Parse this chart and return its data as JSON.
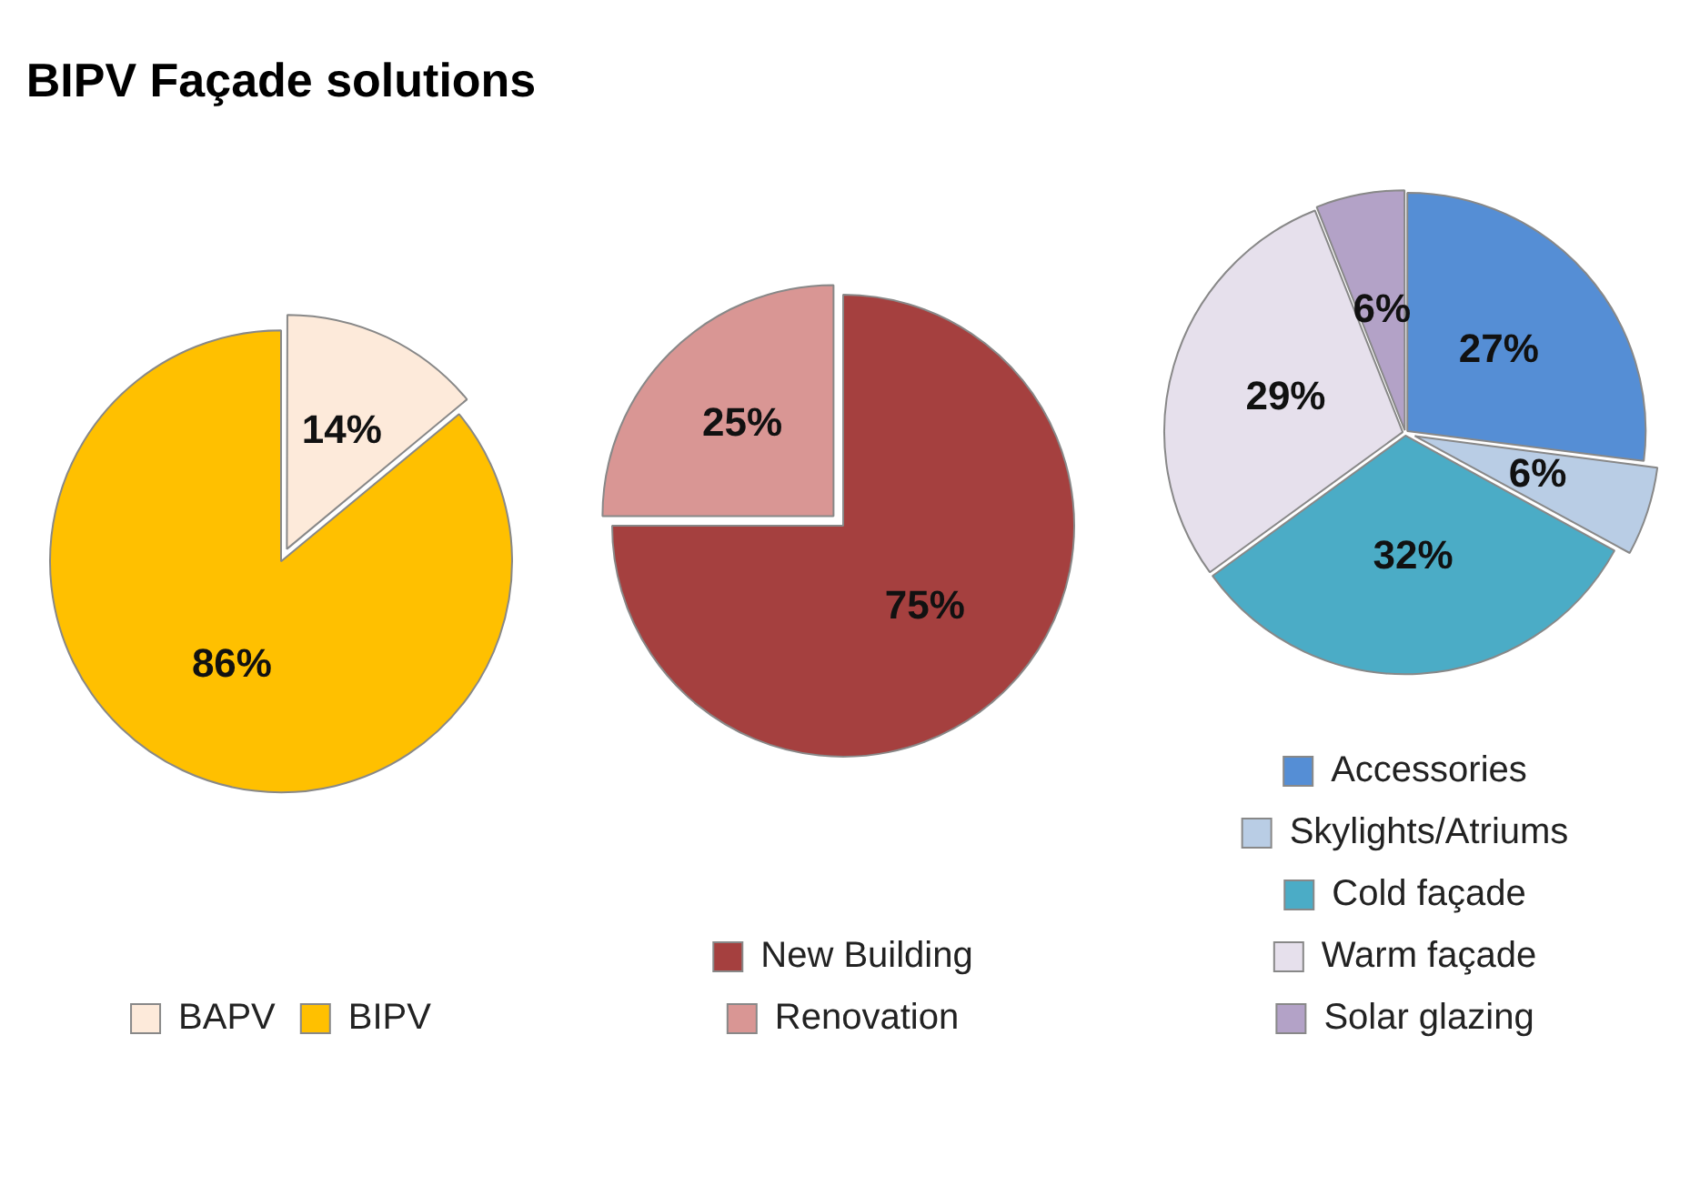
{
  "chart_data": [
    {
      "type": "pie",
      "title": "BIPV Façade solutions",
      "categories": [
        "BAPV",
        "BIPV"
      ],
      "values": [
        14,
        86
      ],
      "value_labels": [
        "14%",
        "86%"
      ],
      "colors": [
        "#fdeada",
        "#ffc000"
      ],
      "legend": "bottom"
    },
    {
      "type": "pie",
      "categories": [
        "New Building",
        "Renovation"
      ],
      "values": [
        75,
        25
      ],
      "value_labels": [
        "75%",
        "25%"
      ],
      "colors": [
        "#a5403f",
        "#d99694"
      ],
      "legend": "bottom"
    },
    {
      "type": "pie",
      "categories": [
        "Accessories",
        "Skylights/Atriums",
        "Cold façade",
        "Warm façade",
        "Solar glazing"
      ],
      "values": [
        27,
        6,
        32,
        29,
        6
      ],
      "value_labels": [
        "27%",
        "6%",
        "32%",
        "29%",
        "6%"
      ],
      "colors": [
        "#558ed5",
        "#b9cde5",
        "#4bacc6",
        "#e6e0ec",
        "#b3a2c7"
      ],
      "legend": "bottom"
    }
  ]
}
